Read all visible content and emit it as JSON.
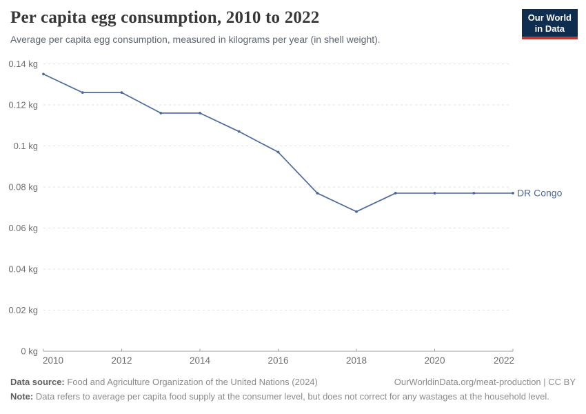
{
  "header": {
    "title": "Per capita egg consumption, 2010 to 2022",
    "subtitle": "Average per capita egg consumption, measured in kilograms per year (in shell weight)."
  },
  "logo": {
    "line1": "Our World",
    "line2": "in Data",
    "bg_color": "#0F2D4E",
    "accent_color": "#C0372D"
  },
  "chart_data": {
    "type": "line",
    "title": "Per capita egg consumption, 2010 to 2022",
    "x": [
      2010,
      2011,
      2012,
      2013,
      2014,
      2015,
      2016,
      2017,
      2018,
      2019,
      2020,
      2021,
      2022
    ],
    "series": [
      {
        "name": "DR Congo",
        "color": "#4C6A9C",
        "values": [
          0.135,
          0.126,
          0.126,
          0.116,
          0.116,
          0.107,
          0.097,
          0.077,
          0.068,
          0.077,
          0.077,
          0.077,
          0.077
        ]
      }
    ],
    "x_ticks": [
      2010,
      2012,
      2014,
      2016,
      2018,
      2020,
      2022
    ],
    "y_ticks": [
      0,
      0.02,
      0.04,
      0.06,
      0.08,
      0.1,
      0.12,
      0.14
    ],
    "y_tick_unit": "kg",
    "xlim": [
      2010,
      2022
    ],
    "ylim": [
      0,
      0.14
    ],
    "grid": "horizontal-dashed",
    "legend": "end-of-line-label",
    "axis_color": "#a1a1a1",
    "grid_color": "#e2e2e2",
    "tick_label_color": "#6e6e6e"
  },
  "footer": {
    "source_label": "Data source:",
    "source_text": "Food and Agriculture Organization of the United Nations (2024)",
    "link_text": "OurWorldinData.org/meat-production | CC BY",
    "note_label": "Note:",
    "note_text": "Data refers to average per capita food supply at the consumer level, but does not correct for any wastages at the household level."
  }
}
